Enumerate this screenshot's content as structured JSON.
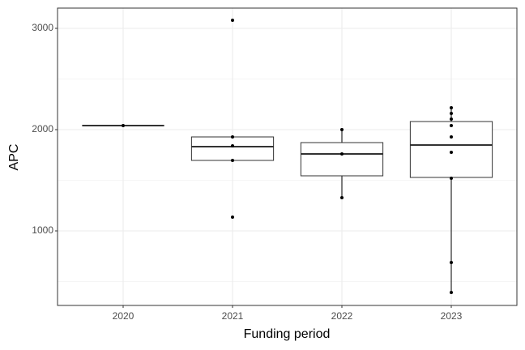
{
  "chart_data": {
    "type": "box",
    "xlabel": "Funding period",
    "ylabel": "APC",
    "categories": [
      "2020",
      "2021",
      "2022",
      "2023"
    ],
    "series": [
      {
        "name": "whisker_low",
        "values": [
          2040,
          1696,
          1328,
          392
        ]
      },
      {
        "name": "q1",
        "values": [
          2040,
          1696,
          1544,
          1528
        ]
      },
      {
        "name": "median",
        "values": [
          2040,
          1832,
          1760,
          1848
        ]
      },
      {
        "name": "q3",
        "values": [
          2040,
          1928,
          1872,
          2080
        ]
      },
      {
        "name": "whisker_high",
        "values": [
          2040,
          1928,
          2000,
          2216
        ]
      }
    ],
    "points": [
      [
        2040
      ],
      [
        3080,
        1928,
        1840,
        1696,
        1136
      ],
      [
        2000,
        1760,
        1328
      ],
      [
        2216,
        2160,
        2104,
        2040,
        1928,
        1776,
        1520,
        688,
        392
      ]
    ],
    "ylim": [
      264,
      3200
    ],
    "yticks": [
      1000,
      2000,
      3000
    ],
    "yminor": [
      500,
      1500,
      2500
    ],
    "grid": true,
    "color": "#000000"
  }
}
